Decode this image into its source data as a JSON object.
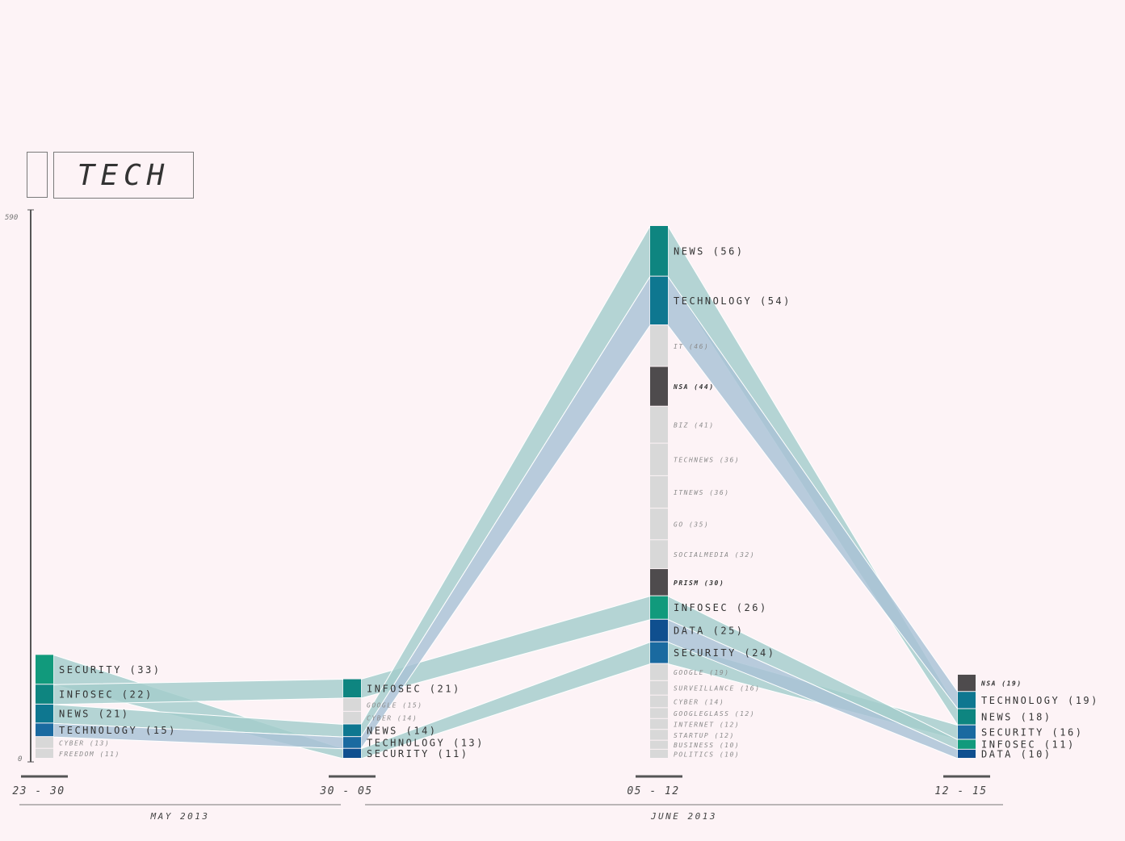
{
  "title": "TECH",
  "colors": {
    "background": "#fdf3f6",
    "teal_green": "#119a7c",
    "teal": "#0e8580",
    "dark_teal": "#0e7790",
    "blue": "#1a6aa0",
    "navy": "#0f4f8f",
    "grey_tag": "#d8d8d8",
    "dark_tag": "#4e4b4d",
    "flow_teal": "#a3cdcc",
    "flow_blue": "#a8c2d6",
    "flow_green": "#a5d8c8"
  },
  "chart_data": {
    "type": "alluvial",
    "title": "TECH",
    "y_axis": {
      "min_label": "0",
      "max_label": "590",
      "range": [
        0,
        590
      ]
    },
    "periods": [
      {
        "label": "23 - 30",
        "tags": [
          {
            "name": "SECURITY",
            "count": 33,
            "label": "SECURITY (33)",
            "kind": "tracked",
            "color": "#119a7c"
          },
          {
            "name": "INFOSEC",
            "count": 22,
            "label": "INFOSEC (22)",
            "kind": "tracked",
            "color": "#0e8580"
          },
          {
            "name": "NEWS",
            "count": 21,
            "label": "NEWS (21)",
            "kind": "tracked",
            "color": "#0e7790"
          },
          {
            "name": "TECHNOLOGY",
            "count": 15,
            "label": "TECHNOLOGY (15)",
            "kind": "tracked",
            "color": "#1a6aa0"
          },
          {
            "name": "CYBER",
            "count": 13,
            "label": "CYBER (13)",
            "kind": "other",
            "color": "#d8d8d8"
          },
          {
            "name": "FREEDOM",
            "count": 11,
            "label": "FREEDOM (11)",
            "kind": "other",
            "color": "#d8d8d8"
          }
        ]
      },
      {
        "label": "30 - 05",
        "tags": [
          {
            "name": "INFOSEC",
            "count": 21,
            "label": "INFOSEC (21)",
            "kind": "tracked",
            "color": "#0e8580"
          },
          {
            "name": "GOOGLE",
            "count": 15,
            "label": "GOOGLE (15)",
            "kind": "other",
            "color": "#d8d8d8"
          },
          {
            "name": "CYBER",
            "count": 14,
            "label": "CYBER (14)",
            "kind": "other",
            "color": "#d8d8d8"
          },
          {
            "name": "NEWS",
            "count": 14,
            "label": "NEWS (14)",
            "kind": "tracked",
            "color": "#0e7790"
          },
          {
            "name": "TECHNOLOGY",
            "count": 13,
            "label": "TECHNOLOGY (13)",
            "kind": "tracked",
            "color": "#1a6aa0"
          },
          {
            "name": "SECURITY",
            "count": 11,
            "label": "SECURITY (11)",
            "kind": "tracked",
            "color": "#0f4f8f"
          }
        ]
      },
      {
        "label": "05 - 12",
        "tags": [
          {
            "name": "NEWS",
            "count": 56,
            "label": "NEWS (56)",
            "kind": "tracked",
            "color": "#0e8580"
          },
          {
            "name": "TECHNOLOGY",
            "count": 54,
            "label": "TECHNOLOGY (54)",
            "kind": "tracked",
            "color": "#0e7790"
          },
          {
            "name": "IT",
            "count": 46,
            "label": "IT (46)",
            "kind": "other",
            "color": "#d8d8d8"
          },
          {
            "name": "NSA",
            "count": 44,
            "label": "NSA (44)",
            "kind": "highlight",
            "color": "#4e4b4d"
          },
          {
            "name": "BIZ",
            "count": 41,
            "label": "BIZ (41)",
            "kind": "other",
            "color": "#d8d8d8"
          },
          {
            "name": "TECHNEWS",
            "count": 36,
            "label": "TECHNEWS (36)",
            "kind": "other",
            "color": "#d8d8d8"
          },
          {
            "name": "ITNEWS",
            "count": 36,
            "label": "ITNEWS (36)",
            "kind": "other",
            "color": "#d8d8d8"
          },
          {
            "name": "GO",
            "count": 35,
            "label": "GO (35)",
            "kind": "other",
            "color": "#d8d8d8"
          },
          {
            "name": "SOCIALMEDIA",
            "count": 32,
            "label": "SOCIALMEDIA (32)",
            "kind": "other",
            "color": "#d8d8d8"
          },
          {
            "name": "PRISM",
            "count": 30,
            "label": "PRISM (30)",
            "kind": "highlight",
            "color": "#4e4b4d"
          },
          {
            "name": "INFOSEC",
            "count": 26,
            "label": "INFOSEC (26)",
            "kind": "tracked",
            "color": "#119a7c"
          },
          {
            "name": "DATA",
            "count": 25,
            "label": "DATA (25)",
            "kind": "tracked",
            "color": "#0f4f8f"
          },
          {
            "name": "SECURITY",
            "count": 24,
            "label": "SECURITY (24)",
            "kind": "tracked",
            "color": "#1a6aa0"
          },
          {
            "name": "GOOGLE",
            "count": 19,
            "label": "GOOGLE (19)",
            "kind": "other",
            "color": "#d8d8d8"
          },
          {
            "name": "SURVEILLANCE",
            "count": 16,
            "label": "SURVEILLANCE (16)",
            "kind": "other",
            "color": "#d8d8d8"
          },
          {
            "name": "CYBER",
            "count": 14,
            "label": "CYBER (14)",
            "kind": "other",
            "color": "#d8d8d8"
          },
          {
            "name": "GOOGLEGLASS",
            "count": 12,
            "label": "GOOGLEGLASS (12)",
            "kind": "other",
            "color": "#d8d8d8"
          },
          {
            "name": "INTERNET",
            "count": 12,
            "label": "INTERNET (12)",
            "kind": "other",
            "color": "#d8d8d8"
          },
          {
            "name": "STARTUP",
            "count": 12,
            "label": "STARTUP (12)",
            "kind": "other",
            "color": "#d8d8d8"
          },
          {
            "name": "BUSINESS",
            "count": 10,
            "label": "BUSINESS (10)",
            "kind": "other",
            "color": "#d8d8d8"
          },
          {
            "name": "POLITICS",
            "count": 10,
            "label": "POLITICS (10)",
            "kind": "other",
            "color": "#d8d8d8"
          }
        ]
      },
      {
        "label": "12 - 15",
        "tags": [
          {
            "name": "NSA",
            "count": 19,
            "label": "NSA (19)",
            "kind": "highlight",
            "color": "#4e4b4d"
          },
          {
            "name": "TECHNOLOGY",
            "count": 19,
            "label": "TECHNOLOGY (19)",
            "kind": "tracked",
            "color": "#0e7790"
          },
          {
            "name": "NEWS",
            "count": 18,
            "label": "NEWS (18)",
            "kind": "tracked",
            "color": "#0e8580"
          },
          {
            "name": "SECURITY",
            "count": 16,
            "label": "SECURITY (16)",
            "kind": "tracked",
            "color": "#1a6aa0"
          },
          {
            "name": "INFOSEC",
            "count": 11,
            "label": "INFOSEC (11)",
            "kind": "tracked",
            "color": "#119a7c"
          },
          {
            "name": "DATA",
            "count": 10,
            "label": "DATA (10)",
            "kind": "tracked",
            "color": "#0f4f8f"
          }
        ]
      }
    ],
    "months": [
      {
        "label": "MAY 2013"
      },
      {
        "label": "JUNE 2013"
      }
    ],
    "flows": [
      {
        "tag": "SECURITY",
        "color": "#a3cdcc"
      },
      {
        "tag": "INFOSEC",
        "color": "#a3cdcc"
      },
      {
        "tag": "NEWS",
        "color": "#a3cdcc"
      },
      {
        "tag": "TECHNOLOGY",
        "color": "#a8c2d6"
      },
      {
        "tag": "DATA",
        "color": "#a8c2d6"
      }
    ]
  }
}
